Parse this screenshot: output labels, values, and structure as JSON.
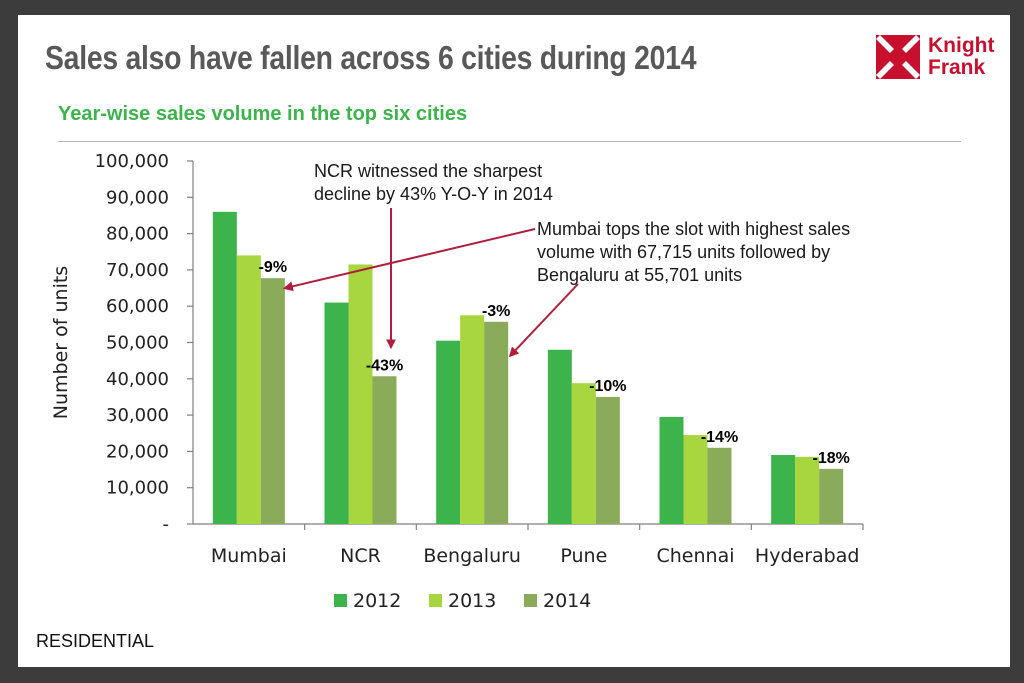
{
  "slide": {
    "title": "Sales also have fallen across 6 cities during 2014",
    "subtitle": "Year-wise sales volume in the top six cities",
    "footer": "RESIDENTIAL"
  },
  "logo": {
    "line1": "Knight",
    "line2": "Frank",
    "color": "#c8102e"
  },
  "annotations": {
    "ncr_line1": "NCR witnessed the sharpest",
    "ncr_line2": "decline by 43% Y-O-Y in 2014",
    "mumbai_line1": "Mumbai tops the slot with highest sales",
    "mumbai_line2": "volume with 67,715 units followed by",
    "mumbai_line3": "Bengaluru at 55,701 units",
    "arrow_color": "#b01e3c"
  },
  "chart_data": {
    "type": "bar",
    "ylabel": "Number of units",
    "xlabel": "",
    "ylim": [
      0,
      100000
    ],
    "yticks": [
      0,
      10000,
      20000,
      30000,
      40000,
      50000,
      60000,
      70000,
      80000,
      90000,
      100000
    ],
    "ytick_labels": [
      "-",
      "10,000",
      "20,000",
      "30,000",
      "40,000",
      "50,000",
      "60,000",
      "70,000",
      "80,000",
      "90,000",
      "100,000"
    ],
    "categories": [
      "Mumbai",
      "NCR",
      "Bengaluru",
      "Pune",
      "Chennai",
      "Hyderabad"
    ],
    "series": [
      {
        "name": "2012",
        "color": "#3cb44b",
        "values": [
          86000,
          61000,
          50500,
          48000,
          29500,
          19000
        ]
      },
      {
        "name": "2013",
        "color": "#a8d63e",
        "values": [
          74000,
          71500,
          57500,
          38800,
          24500,
          18500
        ]
      },
      {
        "name": "2014",
        "color": "#8aab59",
        "values": [
          67715,
          40700,
          55701,
          35000,
          21000,
          15200
        ]
      }
    ],
    "change_labels": [
      "-9%",
      "-43%",
      "-3%",
      "-10%",
      "-14%",
      "-18%"
    ],
    "grid": false,
    "legend": "bottom"
  }
}
